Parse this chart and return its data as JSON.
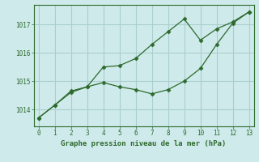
{
  "line1_x": [
    0,
    1,
    2,
    3,
    4,
    5,
    6,
    7,
    8,
    9,
    10,
    11,
    12,
    13
  ],
  "line1_y": [
    1013.7,
    1014.15,
    1014.65,
    1014.8,
    1014.95,
    1014.8,
    1014.7,
    1014.55,
    1014.7,
    1015.0,
    1015.45,
    1016.3,
    1017.05,
    1017.45
  ],
  "line2_x": [
    0,
    1,
    2,
    3,
    4,
    5,
    6,
    7,
    8,
    9,
    10,
    11,
    12,
    13
  ],
  "line2_y": [
    1013.7,
    1014.15,
    1014.6,
    1014.8,
    1015.5,
    1015.55,
    1015.8,
    1016.3,
    1016.75,
    1017.2,
    1016.45,
    1016.85,
    1017.1,
    1017.45
  ],
  "line_color": "#2d6a2d",
  "marker": "D",
  "marker_size": 2.5,
  "xlim": [
    -0.3,
    13.3
  ],
  "ylim": [
    1013.4,
    1017.7
  ],
  "yticks": [
    1014,
    1015,
    1016,
    1017
  ],
  "xticks": [
    0,
    1,
    2,
    3,
    4,
    5,
    6,
    7,
    8,
    9,
    10,
    11,
    12,
    13
  ],
  "xlabel": "Graphe pression niveau de la mer (hPa)",
  "bg_color": "#ceeaea",
  "grid_color": "#aacece",
  "tick_color": "#2d6a2d",
  "label_color": "#2d6a2d",
  "xlabel_fontsize": 6.5,
  "tick_fontsize": 5.5
}
